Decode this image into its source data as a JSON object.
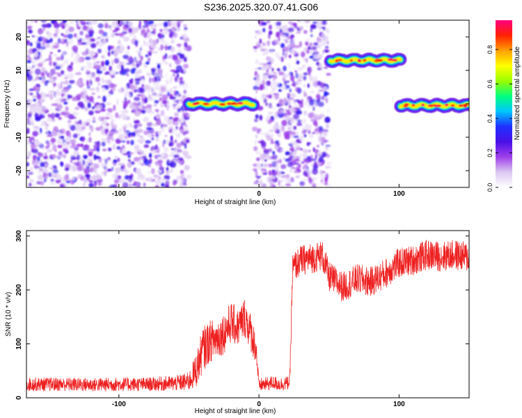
{
  "title": "S236.2025.320.07.41.G06",
  "chart_data": [
    {
      "type": "heatmap",
      "xlabel": "Height of straight line (km)",
      "ylabel": "Frequency (Hz)",
      "xlim": [
        -166,
        150
      ],
      "ylim": [
        -25,
        25
      ],
      "x_ticks": [
        -100,
        0,
        100
      ],
      "x_tick_labels": [
        "-100",
        "0",
        "100"
      ],
      "y_ticks": [
        -20,
        -10,
        0,
        10,
        20
      ],
      "y_tick_labels": [
        "-20",
        "-10",
        "0",
        "10",
        "20"
      ],
      "colorbar": {
        "label": "Normalized spectral amplitude",
        "range": [
          0,
          0.97
        ],
        "ticks": [
          0,
          0.2,
          0.4,
          0.6,
          0.8
        ],
        "tick_labels": [
          "0.0",
          "0.2",
          "0.4",
          "0.6",
          "0.8"
        ],
        "colors": [
          "#ffffff",
          "#dcc8f2",
          "#9f3fea",
          "#4a10e8",
          "#1e30ff",
          "#00c8ff",
          "#00ff80",
          "#9aff00",
          "#ffff00",
          "#ffa000",
          "#ff2000",
          "#ff0080"
        ]
      },
      "noise_regions": [
        {
          "x_start": -166,
          "x_end": -50,
          "freq_range": [
            -25,
            25
          ],
          "amplitude": "0.1-0.3"
        },
        {
          "x_start": -3,
          "x_end": 50,
          "freq_range": [
            -25,
            25
          ],
          "amplitude": "0.1-0.3"
        }
      ],
      "signal_segments": [
        {
          "x_start": -50,
          "x_end": -4,
          "freq_hz": 0.0,
          "peak_amplitude": 0.85
        },
        {
          "x_start": 51,
          "x_end": 101,
          "freq_hz": 13.0,
          "peak_amplitude": 0.9
        },
        {
          "x_start": 101,
          "x_end": 150,
          "freq_hz": -0.5,
          "peak_amplitude": 0.9
        }
      ]
    },
    {
      "type": "line",
      "xlabel": "Height of straight line (km)",
      "ylabel": "SNR (10 * v/v)",
      "xlim": [
        -166,
        150
      ],
      "ylim": [
        0,
        310
      ],
      "x_ticks": [
        -100,
        0,
        100
      ],
      "x_tick_labels": [
        "-100",
        "0",
        "100"
      ],
      "y_ticks": [
        0,
        100,
        200,
        300
      ],
      "y_tick_labels": [
        "0",
        "100",
        "200",
        "300"
      ],
      "series": [
        {
          "color": "#ee2020",
          "x": [
            -166,
            -140,
            -120,
            -100,
            -80,
            -60,
            -50,
            -45,
            -40,
            -35,
            -30,
            -25,
            -20,
            -15,
            -10,
            -5,
            -2,
            0,
            2,
            5,
            10,
            15,
            20,
            22,
            24,
            30,
            40,
            45,
            50,
            55,
            60,
            70,
            80,
            90,
            100,
            110,
            120,
            130,
            140,
            150
          ],
          "y": [
            25,
            25,
            24,
            25,
            25,
            27,
            30,
            50,
            90,
            105,
            110,
            120,
            140,
            130,
            150,
            115,
            90,
            20,
            25,
            25,
            28,
            25,
            27,
            30,
            240,
            255,
            260,
            265,
            225,
            215,
            205,
            220,
            215,
            230,
            250,
            255,
            265,
            262,
            265,
            260
          ],
          "noise": [
            18,
            18,
            18,
            18,
            18,
            20,
            25,
            45,
            60,
            55,
            55,
            55,
            55,
            50,
            55,
            50,
            40,
            15,
            18,
            18,
            18,
            18,
            18,
            20,
            40,
            40,
            40,
            40,
            40,
            40,
            40,
            40,
            40,
            40,
            40,
            40,
            40,
            40,
            40,
            40
          ]
        }
      ]
    }
  ]
}
